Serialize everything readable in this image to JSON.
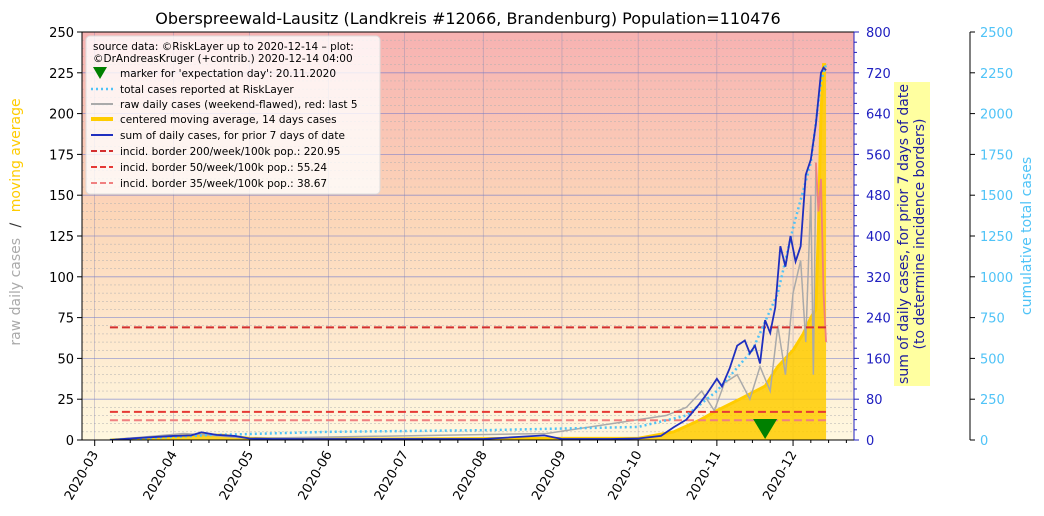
{
  "chart_data": {
    "type": "line",
    "title": "Oberspreewald-Lausitz (Landkreis #12066, Brandenburg) Population=110476",
    "ylabel_left": {
      "part1": "raw daily cases",
      "sep": "/",
      "part2": "moving average"
    },
    "ylabel_right1": {
      "line1": "sum of daily cases, for prior 7 days of date",
      "line2": "(to determine incidence borders)"
    },
    "ylabel_right2": "cumulative total cases",
    "xaxis_ticks": [
      "2020-03",
      "2020-04",
      "2020-05",
      "2020-06",
      "2020-07",
      "2020-08",
      "2020-09",
      "2020-10",
      "2020-11",
      "2020-12"
    ],
    "y_left": {
      "ylim": [
        0,
        250
      ],
      "ticks": [
        0,
        25,
        50,
        75,
        100,
        125,
        150,
        175,
        200,
        225,
        250
      ]
    },
    "y_right1": {
      "ylim": [
        0,
        800
      ],
      "ticks": [
        0,
        80,
        160,
        240,
        320,
        400,
        480,
        560,
        640,
        720,
        800
      ]
    },
    "y_right2": {
      "ylim": [
        0,
        2500
      ],
      "ticks": [
        0,
        250,
        500,
        750,
        1000,
        1250,
        1500,
        1750,
        2000,
        2250,
        2500
      ]
    },
    "legend": {
      "placement": "top-left",
      "source_line1": "source data: ©RiskLayer up to 2020-12-14 – plot:",
      "source_line2": "©DrAndreasKruger (+contrib.) 2020-12-14 04:00",
      "entries": [
        "marker for 'expectation day': 20.11.2020",
        "total cases reported at RiskLayer",
        "raw daily cases (weekend-flawed), red: last 5",
        "centered moving average, 14 days cases",
        "sum of daily cases, for prior 7 days of date",
        "incid. border 200/week/100k pop.: 220.95",
        "incid. border 50/week/100k pop.: 55.24",
        "incid. border 35/week/100k pop.: 38.67"
      ]
    },
    "colors": {
      "raw": "#aaaaaa",
      "raw_last5": "#f08080",
      "moving_average": "#ffcc00",
      "sum7": "#1f2fbf",
      "total": "#4fc3f7",
      "border200": "#d32f2f",
      "border50": "#e53935",
      "border35": "#f08080",
      "marker": "#008000",
      "right1_axis": "#2020c0",
      "right2_axis": "#4fc3f7"
    },
    "incidence_borders": [
      {
        "name": "200/week/100k",
        "value": 220.95
      },
      {
        "name": "50/week/100k",
        "value": 55.24
      },
      {
        "name": "35/week/100k",
        "value": 38.67
      }
    ],
    "expectation_day": "2020-11-20",
    "series": {
      "sum7": {
        "x": [
          "2020-03-07",
          "2020-03-15",
          "2020-03-25",
          "2020-04-01",
          "2020-04-08",
          "2020-04-12",
          "2020-04-18",
          "2020-04-25",
          "2020-05-01",
          "2020-05-10",
          "2020-06-01",
          "2020-07-01",
          "2020-08-01",
          "2020-08-25",
          "2020-09-01",
          "2020-09-20",
          "2020-10-01",
          "2020-10-10",
          "2020-10-15",
          "2020-10-20",
          "2020-10-25",
          "2020-10-28",
          "2020-11-01",
          "2020-11-03",
          "2020-11-06",
          "2020-11-09",
          "2020-11-12",
          "2020-11-14",
          "2020-11-16",
          "2020-11-18",
          "2020-11-20",
          "2020-11-22",
          "2020-11-24",
          "2020-11-26",
          "2020-11-28",
          "2020-11-30",
          "2020-12-02",
          "2020-12-04",
          "2020-12-06",
          "2020-12-08",
          "2020-12-10",
          "2020-12-12",
          "2020-12-13",
          "2020-12-14"
        ],
        "values": [
          0,
          3,
          6,
          8,
          9,
          15,
          10,
          8,
          3,
          2,
          2,
          2,
          2,
          9,
          2,
          2,
          3,
          8,
          25,
          40,
          70,
          90,
          120,
          105,
          140,
          185,
          195,
          170,
          185,
          150,
          235,
          210,
          260,
          380,
          340,
          400,
          350,
          380,
          520,
          550,
          620,
          720,
          730,
          725
        ]
      },
      "moving_average": {
        "x": [
          "2020-03-07",
          "2020-04-01",
          "2020-04-10",
          "2020-04-20",
          "2020-05-01",
          "2020-06-01",
          "2020-08-25",
          "2020-10-01",
          "2020-10-15",
          "2020-10-25",
          "2020-11-01",
          "2020-11-10",
          "2020-11-20",
          "2020-11-25",
          "2020-12-01",
          "2020-12-05",
          "2020-12-08",
          "2020-12-10",
          "2020-12-11",
          "2020-12-12",
          "2020-12-13",
          "2020-12-14"
        ],
        "values": [
          0,
          2,
          3,
          3,
          1,
          0.5,
          1,
          1,
          5,
          12,
          18,
          25,
          33,
          45,
          55,
          65,
          75,
          80,
          130,
          200,
          230,
          230
        ]
      },
      "raw": {
        "x": [
          "2020-03-07",
          "2020-04-05",
          "2020-04-15",
          "2020-05-01",
          "2020-08-26",
          "2020-10-12",
          "2020-10-20",
          "2020-10-26",
          "2020-10-31",
          "2020-11-04",
          "2020-11-09",
          "2020-11-14",
          "2020-11-18",
          "2020-11-22",
          "2020-11-25",
          "2020-11-28",
          "2020-12-01",
          "2020-12-04",
          "2020-12-06",
          "2020-12-08",
          "2020-12-09",
          "2020-12-10"
        ],
        "values": [
          0,
          4,
          3,
          1,
          4,
          15,
          20,
          30,
          18,
          35,
          40,
          25,
          45,
          30,
          70,
          40,
          90,
          110,
          60,
          150,
          40,
          170
        ]
      },
      "raw_last5": {
        "x": [
          "2020-12-10",
          "2020-12-11",
          "2020-12-12",
          "2020-12-13",
          "2020-12-14"
        ],
        "values": [
          170,
          140,
          160,
          90,
          60
        ]
      },
      "total": {
        "x": [
          "2020-03-07",
          "2020-04-15",
          "2020-06-01",
          "2020-08-01",
          "2020-10-01",
          "2020-10-20",
          "2020-11-01",
          "2020-11-15",
          "2020-11-25",
          "2020-12-01",
          "2020-12-08",
          "2020-12-12",
          "2020-12-14"
        ],
        "values": [
          0,
          30,
          50,
          60,
          80,
          150,
          300,
          550,
          900,
          1300,
          1700,
          2200,
          2300
        ]
      }
    }
  }
}
